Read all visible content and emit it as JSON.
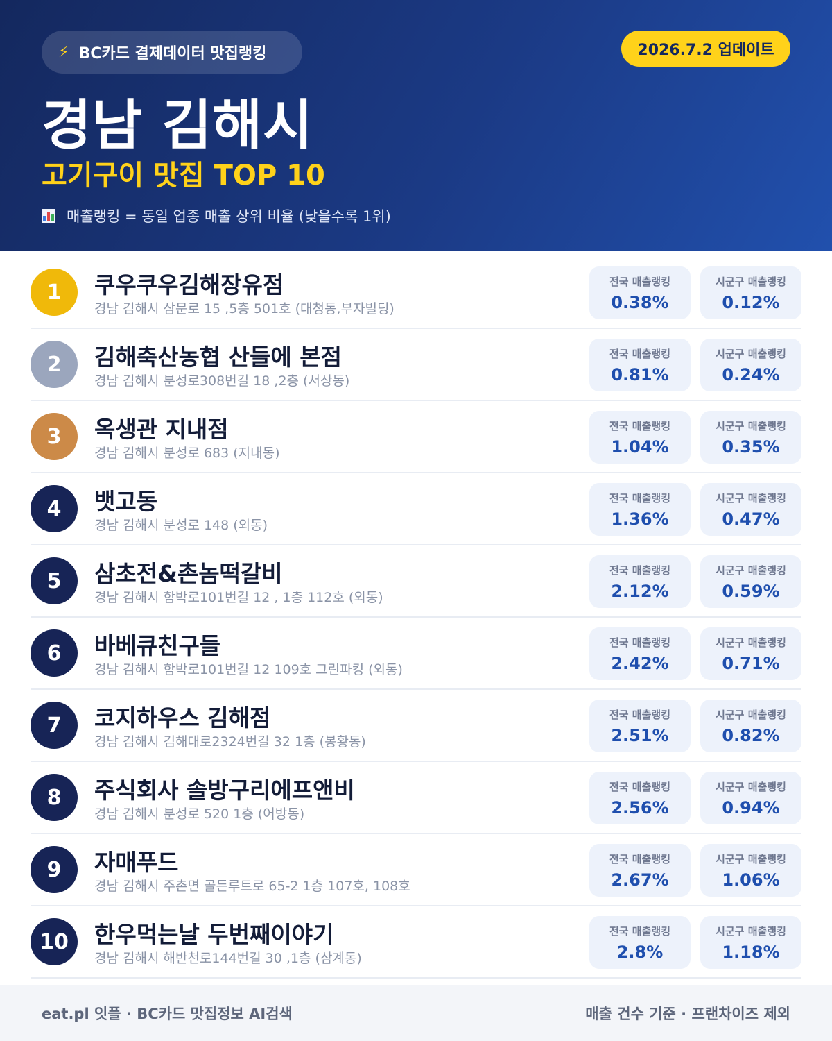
{
  "header": {
    "tag_icon": "lightning-icon",
    "tag_text": "BC카드 결제데이터 맛집랭킹",
    "update_text": "2026.7.2 업데이트",
    "title": "경남 김해시",
    "subtitle": "고기구이 맛집 TOP 10",
    "note_icon": "bar-chart-icon",
    "note_text": "매출랭킹 = 동일 업종 매출 상위 비율 (낮을수록 1위)"
  },
  "colors": {
    "header_dark": "#14285e",
    "header_light": "#2150ad",
    "accent_yellow": "#ffd21a",
    "gold": "#f0b90a",
    "silver": "#9ba6bd",
    "bronze": "#cc8a48",
    "navy": "#172456",
    "stat_value": "#1f4fae"
  },
  "stat_labels": {
    "national": "전국 매출랭킹",
    "local": "시군구 매출랭킹"
  },
  "items": [
    {
      "rank": "1",
      "name": "쿠우쿠우김해장유점",
      "address": "경남 김해시 삼문로 15 ,5층 501호 (대청동,부자빌딩)",
      "national": "0.38%",
      "local": "0.12%",
      "badge": "gold"
    },
    {
      "rank": "2",
      "name": "김해축산농협 산들에 본점",
      "address": "경남 김해시 분성로308번길 18 ,2층 (서상동)",
      "national": "0.81%",
      "local": "0.24%",
      "badge": "silver"
    },
    {
      "rank": "3",
      "name": "옥생관 지내점",
      "address": "경남 김해시 분성로 683 (지내동)",
      "national": "1.04%",
      "local": "0.35%",
      "badge": "bronze"
    },
    {
      "rank": "4",
      "name": "뱃고동",
      "address": "경남 김해시 분성로 148 (외동)",
      "national": "1.36%",
      "local": "0.47%",
      "badge": "navy"
    },
    {
      "rank": "5",
      "name": "삼초전&촌놈떡갈비",
      "address": "경남 김해시 함박로101번길 12 , 1층 112호 (외동)",
      "national": "2.12%",
      "local": "0.59%",
      "badge": "navy"
    },
    {
      "rank": "6",
      "name": "바베큐친구들",
      "address": "경남 김해시 함박로101번길 12 109호 그린파킹 (외동)",
      "national": "2.42%",
      "local": "0.71%",
      "badge": "navy"
    },
    {
      "rank": "7",
      "name": "코지하우스 김해점",
      "address": "경남 김해시 김해대로2324번길 32 1층 (봉황동)",
      "national": "2.51%",
      "local": "0.82%",
      "badge": "navy"
    },
    {
      "rank": "8",
      "name": "주식회사 솔방구리에프앤비",
      "address": "경남 김해시 분성로 520 1층 (어방동)",
      "national": "2.56%",
      "local": "0.94%",
      "badge": "navy"
    },
    {
      "rank": "9",
      "name": "자매푸드",
      "address": "경남 김해시 주촌면 골든루트로 65-2 1층 107호, 108호",
      "national": "2.67%",
      "local": "1.06%",
      "badge": "navy"
    },
    {
      "rank": "10",
      "name": "한우먹는날 두번째이야기",
      "address": "경남 김해시 해반천로144번길 30 ,1층 (삼계동)",
      "national": "2.8%",
      "local": "1.18%",
      "badge": "navy"
    }
  ],
  "footer": {
    "left": "eat.pl 잇플 · BC카드 맛집정보 AI검색",
    "right": "매출 건수 기준 · 프랜차이즈 제외"
  }
}
